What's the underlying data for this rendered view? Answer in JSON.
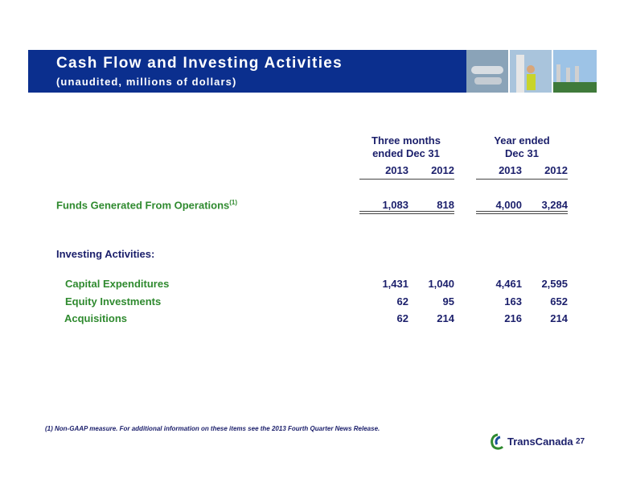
{
  "header": {
    "title": "Cash Flow and Investing Activities",
    "subtitle": "(unaudited, millions of dollars)"
  },
  "table": {
    "column_groups": [
      [
        "Three months",
        "ended Dec 31"
      ],
      [
        "Year ended",
        "Dec 31"
      ]
    ],
    "years": [
      "2013",
      "2012",
      "2013",
      "2012"
    ],
    "funds": {
      "label": "Funds Generated From Operations",
      "note": "(1)",
      "values": [
        "1,083",
        "818",
        "4,000",
        "3,284"
      ]
    },
    "section": "Investing Activities:",
    "rows": [
      {
        "label": "Capital Expenditures",
        "values": [
          "1,431",
          "1,040",
          "4,461",
          "2,595"
        ]
      },
      {
        "label": "Equity Investments",
        "values": [
          "62",
          "95",
          "163",
          "652"
        ]
      },
      {
        "label": "Acquisitions",
        "values": [
          "62",
          "214",
          "216",
          "214"
        ]
      }
    ]
  },
  "footnote": "(1) Non-GAAP measure.  For additional information on these items see the 2013 Fourth Quarter News Release.",
  "footer": {
    "logo": "TransCanada",
    "page_number": "27"
  }
}
